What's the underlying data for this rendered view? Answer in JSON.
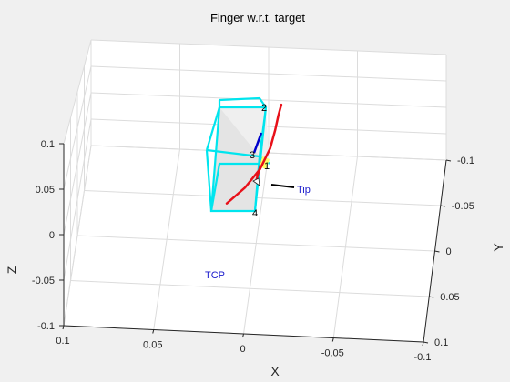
{
  "chart_data": {
    "type": "line3d",
    "title": "Finger  w.r.t. target",
    "xlabel": "X",
    "ylabel": "Y",
    "zlabel": "Z",
    "xlim": [
      -0.1,
      0.1
    ],
    "ylim": [
      -0.1,
      0.1
    ],
    "zlim": [
      -0.1,
      0.1
    ],
    "x_ticks": [
      "0.1",
      "0.05",
      "0",
      "-0.05",
      "-0.1"
    ],
    "y_ticks": [
      "-0.1",
      "-0.05",
      "0",
      "0.05",
      "0.1"
    ],
    "z_ticks": [
      "0.1",
      "0.05",
      "0",
      "-0.05",
      "-0.1"
    ],
    "grid": true,
    "colors": {
      "background": "#f0f0f0",
      "axes_bg": "#ffffff",
      "grid": "#dcdcdc",
      "axis_line": "#262626",
      "path": "#e8111a",
      "box_edges": "#00e5ee",
      "box_face": "#e6e6e6",
      "annotation": "#1a1acc",
      "tip_segment": "#000000"
    },
    "annotations": [
      {
        "text": "TCP",
        "color": "#1a1acc"
      },
      {
        "text": "Tip",
        "color": "#1a1acc"
      }
    ],
    "corner_labels": [
      "1",
      "2",
      "3",
      "4"
    ],
    "series": [
      {
        "points": [
          [
            0.015,
            0.02,
            -0.025
          ],
          [
            0.005,
            0.018,
            -0.005
          ],
          [
            -0.003,
            0.012,
            0.015
          ],
          [
            -0.008,
            0.002,
            0.035
          ],
          [
            -0.01,
            -0.01,
            0.05
          ],
          [
            -0.011,
            -0.02,
            0.062
          ],
          [
            -0.012,
            -0.03,
            0.07
          ]
        ]
      }
    ]
  }
}
